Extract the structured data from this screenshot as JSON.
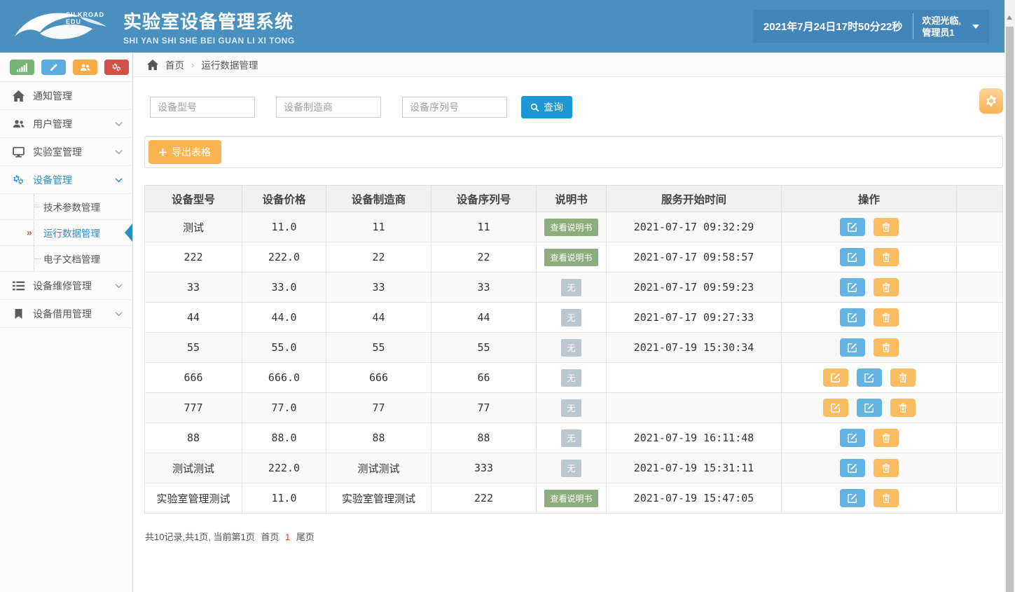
{
  "header": {
    "logo_text": "SILKROAD EDU",
    "title": "实验室设备管理系统",
    "subtitle": "SHI YAN SHI SHE BEI GUAN LI XI TONG",
    "datetime": "2021年7月24日17时50分22秒",
    "welcome_line1": "欢迎光临,",
    "welcome_line2": "管理员1"
  },
  "breadcrumb": {
    "home_label": "首页",
    "separator": "›",
    "current": "运行数据管理"
  },
  "sidebar": {
    "quick_buttons": [
      {
        "name": "stats",
        "icon": "signal",
        "color": "#74b474"
      },
      {
        "name": "edit",
        "icon": "pencil",
        "color": "#5aabde"
      },
      {
        "name": "users",
        "icon": "users",
        "color": "#f7ab47"
      },
      {
        "name": "settings",
        "icon": "cogs",
        "color": "#d05045"
      }
    ],
    "items": [
      {
        "label": "通知管理",
        "icon": "home",
        "expandable": false
      },
      {
        "label": "用户管理",
        "icon": "users",
        "expandable": true
      },
      {
        "label": "实验室管理",
        "icon": "monitor",
        "expandable": true
      },
      {
        "label": "设备管理",
        "icon": "cogs",
        "expandable": true,
        "active": true,
        "children": [
          {
            "label": "技术参数管理"
          },
          {
            "label": "运行数据管理",
            "active": true
          },
          {
            "label": "电子文档管理"
          }
        ]
      },
      {
        "label": "设备维修管理",
        "icon": "list",
        "expandable": true
      },
      {
        "label": "设备借用管理",
        "icon": "bookmark",
        "expandable": true
      }
    ]
  },
  "search": {
    "model_placeholder": "设备型号",
    "maker_placeholder": "设备制造商",
    "serial_placeholder": "设备序列号",
    "query_label": "查询"
  },
  "toolbar": {
    "export_label": "导出表格"
  },
  "table": {
    "columns": [
      "设备型号",
      "设备价格",
      "设备制造商",
      "设备序列号",
      "说明书",
      "服务开始时间",
      "操作"
    ],
    "manual_view_label": "查看说明书",
    "manual_none_label": "无",
    "rows": [
      {
        "model": "测试",
        "price": "11.0",
        "manufacturer": "11",
        "serial": "11",
        "manual": "view",
        "start_time": "2021-07-17 09:32:29",
        "actions": [
          "edit-blue",
          "delete"
        ]
      },
      {
        "model": "222",
        "price": "222.0",
        "manufacturer": "22",
        "serial": "22",
        "manual": "view",
        "start_time": "2021-07-17 09:58:57",
        "actions": [
          "edit-blue",
          "delete"
        ]
      },
      {
        "model": "33",
        "price": "33.0",
        "manufacturer": "33",
        "serial": "33",
        "manual": "none",
        "start_time": "2021-07-17 09:59:23",
        "actions": [
          "edit-blue",
          "delete"
        ]
      },
      {
        "model": "44",
        "price": "44.0",
        "manufacturer": "44",
        "serial": "44",
        "manual": "none",
        "start_time": "2021-07-17 09:27:33",
        "actions": [
          "edit-blue",
          "delete"
        ]
      },
      {
        "model": "55",
        "price": "55.0",
        "manufacturer": "55",
        "serial": "55",
        "manual": "none",
        "start_time": "2021-07-19 15:30:34",
        "actions": [
          "edit-blue",
          "delete"
        ]
      },
      {
        "model": "666",
        "price": "666.0",
        "manufacturer": "666",
        "serial": "66",
        "manual": "none",
        "start_time": "",
        "actions": [
          "edit-orange",
          "edit-blue",
          "delete"
        ]
      },
      {
        "model": "777",
        "price": "77.0",
        "manufacturer": "77",
        "serial": "77",
        "manual": "none",
        "start_time": "",
        "actions": [
          "edit-orange",
          "edit-blue",
          "delete"
        ]
      },
      {
        "model": "88",
        "price": "88.0",
        "manufacturer": "88",
        "serial": "88",
        "manual": "none",
        "start_time": "2021-07-19 16:11:48",
        "actions": [
          "edit-blue",
          "delete"
        ]
      },
      {
        "model": "测试测试",
        "price": "222.0",
        "manufacturer": "测试测试",
        "serial": "333",
        "manual": "none",
        "start_time": "2021-07-19 15:31:11",
        "actions": [
          "edit-blue",
          "delete"
        ]
      },
      {
        "model": "实验室管理测试",
        "price": "11.0",
        "manufacturer": "实验室管理测试",
        "serial": "222",
        "manual": "view",
        "start_time": "2021-07-19 15:47:05",
        "actions": [
          "edit-blue",
          "delete"
        ]
      }
    ]
  },
  "pagination": {
    "summary": "共10记录,共1页, 当前第1页",
    "first_label": "首页",
    "current_page": "1",
    "last_label": "尾页"
  },
  "colors": {
    "header_bg": "#4a90bf",
    "header_box_bg": "#4286b9",
    "accent_blue": "#2d8dc4",
    "query_button_blue": "#1c99d5",
    "export_orange": "#fbb450",
    "action_orange": "#fbbd61",
    "action_blue": "#63b3e4",
    "badge_green": "#8cae7d",
    "badge_gray": "#b9c7d1",
    "active_marker_red": "#d9534f",
    "page_current_red": "#f43b22"
  }
}
